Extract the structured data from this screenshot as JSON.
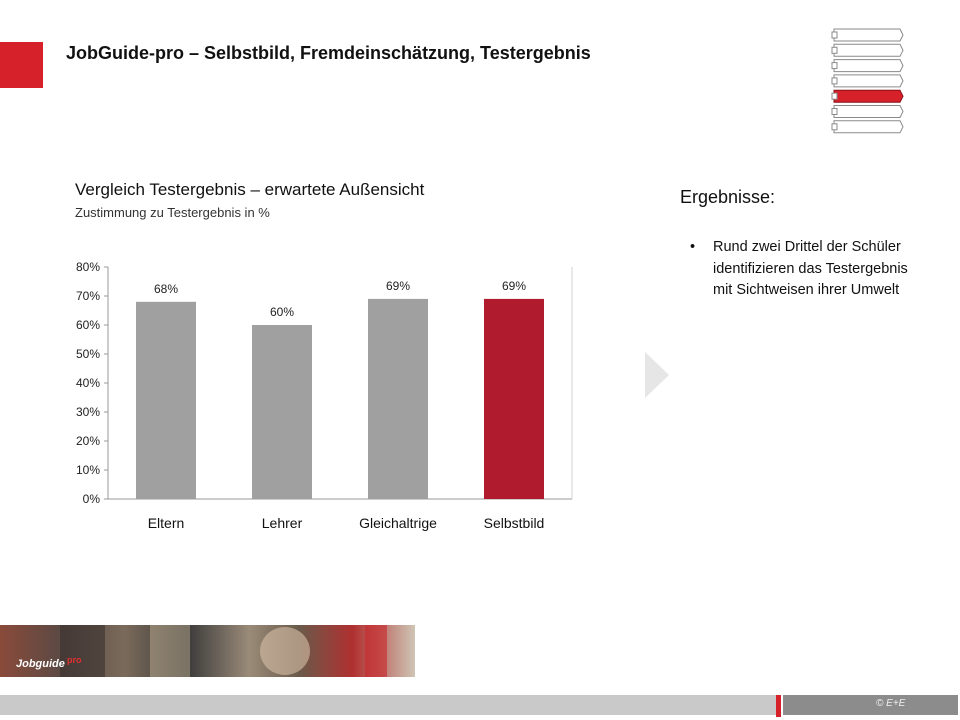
{
  "header": {
    "title": "JobGuide-pro – Selbstbild, Fremdeinschätzung, Testergebnis",
    "nav_steps": 7,
    "nav_active_index": 4,
    "accent_color": "#d6212b"
  },
  "chart_data": {
    "type": "bar",
    "title": "Vergleich Testergebnis – erwartete Außensicht",
    "subtitle": "Zustimmung zu Testergebnis in %",
    "categories": [
      "Eltern",
      "Lehrer",
      "Gleichaltrige",
      "Selbstbild"
    ],
    "values": [
      68,
      60,
      69,
      69
    ],
    "value_labels": [
      "68%",
      "60%",
      "69%",
      "69%"
    ],
    "yticks": [
      "0%",
      "10%",
      "20%",
      "30%",
      "40%",
      "50%",
      "60%",
      "70%",
      "80%"
    ],
    "ylim": [
      0,
      80
    ],
    "colors": [
      "#a0a0a0",
      "#a0a0a0",
      "#a0a0a0",
      "#b01c2e"
    ],
    "grid": false,
    "legend": "none"
  },
  "results": {
    "title": "Ergebnisse:",
    "bullet": "•",
    "items": [
      "Rund zwei Drittel der Schüler identifizieren das Testergebnis mit Sichtweisen ihrer Umwelt"
    ]
  },
  "photo_strip": {
    "logo_text": "Jobguide",
    "logo_suffix": "pro"
  },
  "footer": {
    "copyright": "© E+E"
  }
}
